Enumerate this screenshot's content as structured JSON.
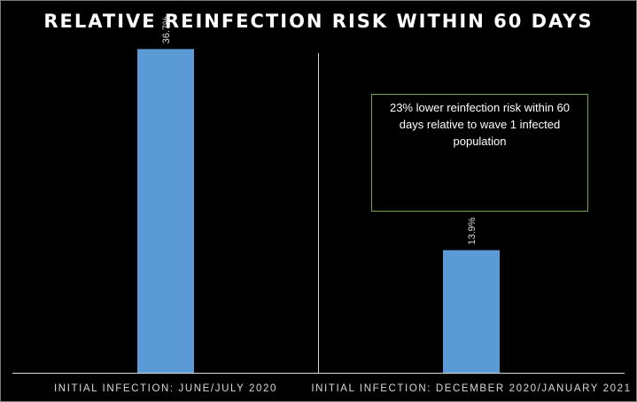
{
  "chart_data": {
    "type": "bar",
    "title": "RELATIVE REINFECTION RISK WITHIN 60 DAYS",
    "categories": [
      "INITIAL INFECTION: JUNE/JULY 2020",
      "INITIAL INFECTION: DECEMBER 2020/JANUARY 2021"
    ],
    "values": [
      36.7,
      13.9
    ],
    "value_labels": [
      "36.7%",
      "13.9%"
    ],
    "ylim": [
      0,
      40
    ],
    "grid": false,
    "legend": "none",
    "bar_color": "#5b9bd5",
    "background": "#000000",
    "annotation": "23%  lower reinfection risk within 60 days relative to wave 1 infected population"
  }
}
